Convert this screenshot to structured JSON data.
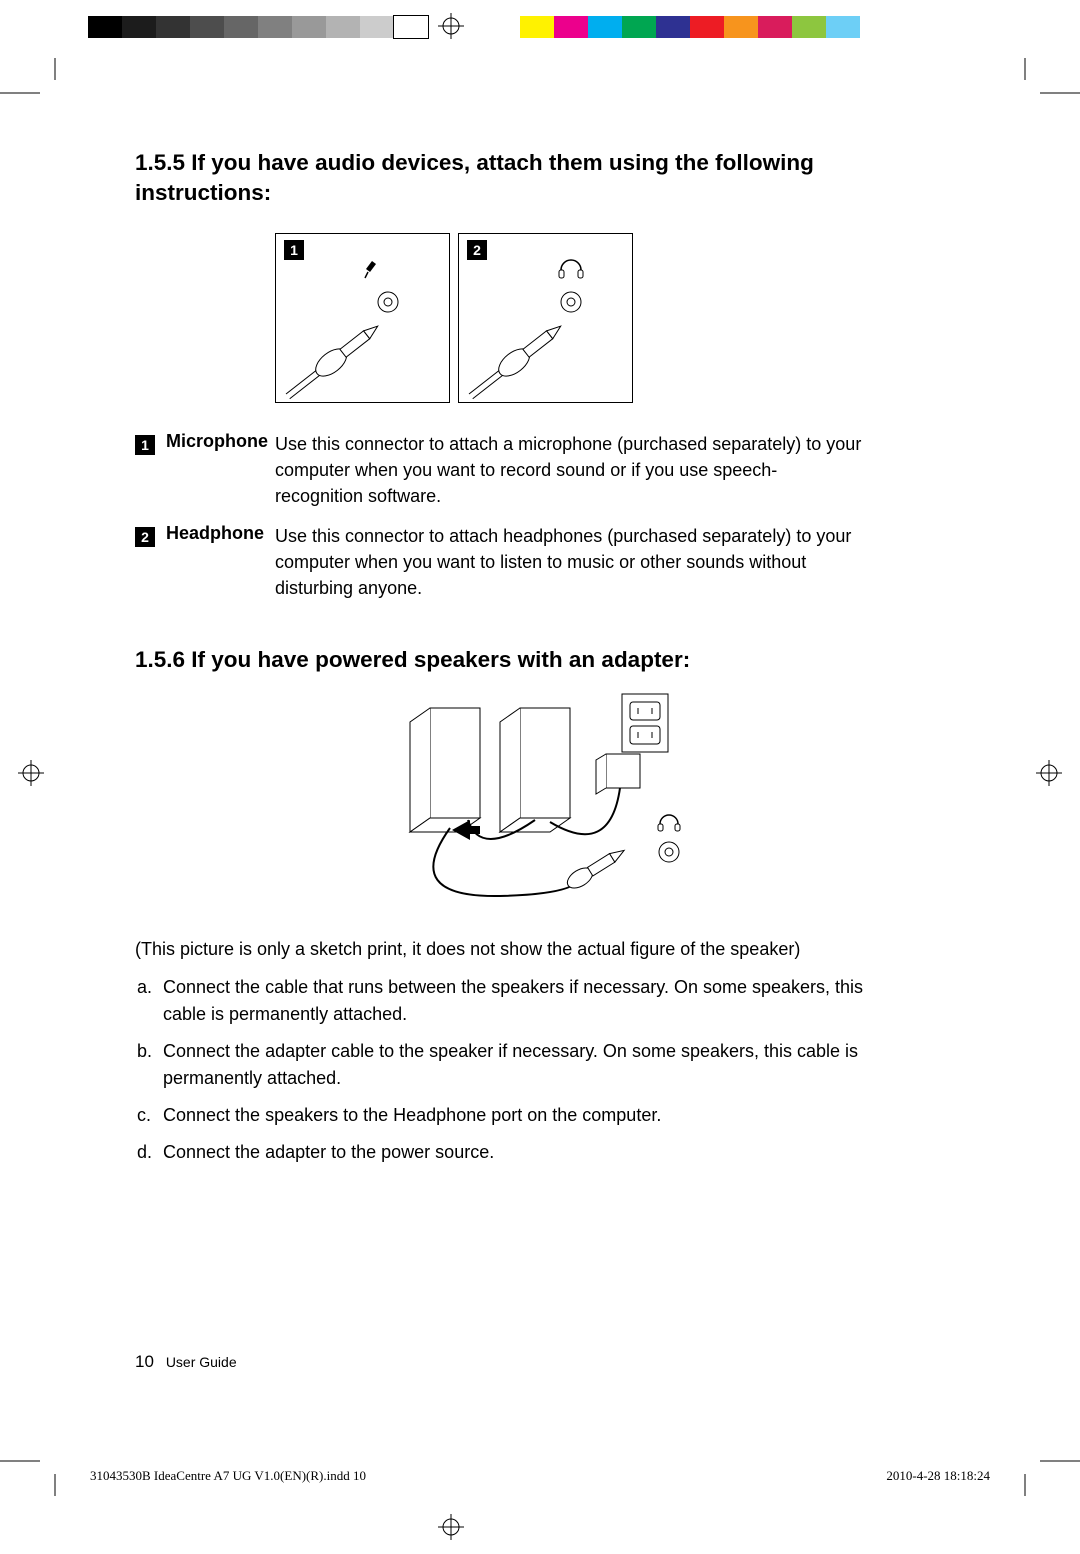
{
  "registration": {
    "grayscale_swatches": [
      "#000000",
      "#1c1c1c",
      "#333333",
      "#4d4d4d",
      "#666666",
      "#808080",
      "#999999",
      "#b3b3b3",
      "#cccccc",
      "#ffffff"
    ],
    "color_swatches": [
      "#fff200",
      "#ec008c",
      "#00aeef",
      "#00a651",
      "#2e3192",
      "#ed1c24",
      "#f7941d",
      "#d91c5c",
      "#8dc63f",
      "#6dcff6"
    ]
  },
  "section1": {
    "heading": "1.5.5 If you have audio devices, attach them using the following instructions:",
    "items": [
      {
        "badge": "1",
        "label": "Microphone",
        "desc": "Use this connector to attach a microphone (purchased separately) to your computer when you want to record sound or if you use speech-recognition software."
      },
      {
        "badge": "2",
        "label": "Headphone",
        "desc": "Use this connector to attach headphones (purchased separately) to your computer when you want to listen to music or other sounds without disturbing anyone."
      }
    ]
  },
  "section2": {
    "heading": "1.5.6 If you have powered speakers with an adapter:",
    "caption": "(This picture is only a sketch print, it does not show the actual figure of the speaker)",
    "steps": [
      {
        "letter": "a.",
        "text": "Connect the cable that runs between the speakers if necessary. On some speakers, this cable is permanently attached."
      },
      {
        "letter": "b.",
        "text": "Connect the adapter cable to the speaker if necessary. On some speakers, this cable is permanently attached."
      },
      {
        "letter": "c.",
        "text": "Connect the speakers to the Headphone port on the computer."
      },
      {
        "letter": "d.",
        "text": "Connect the adapter to the power source."
      }
    ]
  },
  "footer": {
    "page_number": "10",
    "book_title": "User Guide",
    "slug_left": "31043530B IdeaCentre A7 UG V1.0(EN)(R).indd   10",
    "slug_right": "2010-4-28   18:18:24"
  }
}
